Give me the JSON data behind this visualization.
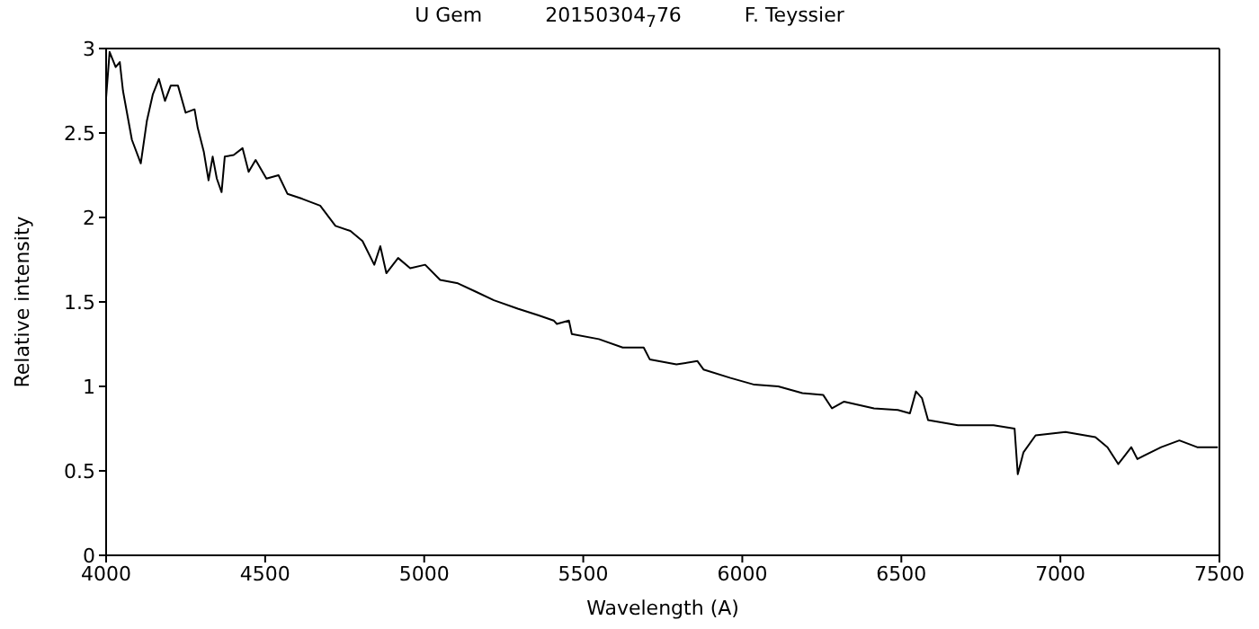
{
  "chart_data": {
    "type": "line",
    "title": "U Gem          20150304$_{7}$76          F. Teyssier",
    "xlabel": "Wavelength (A)",
    "ylabel": "Relative intensity",
    "xlim": [
      4000,
      7500
    ],
    "xticks": [
      4000,
      4500,
      5000,
      5500,
      6000,
      6500,
      7000,
      7500
    ],
    "ylim": [
      0,
      3
    ],
    "yticks": [
      0,
      0.5,
      1,
      1.5,
      2,
      2.5,
      3
    ],
    "grid": false,
    "legend": false,
    "marker": "none",
    "line_style": "solid",
    "series": [
      {
        "color": "#000000",
        "x": [
          4000,
          4011,
          4030,
          4043,
          4053,
          4081,
          4109,
          4128,
          4147,
          4166,
          4185,
          4203,
          4226,
          4250,
          4278,
          4288,
          4307,
          4322,
          4335,
          4348,
          4363,
          4373,
          4401,
          4429,
          4448,
          4470,
          4504,
          4542,
          4570,
          4617,
          4673,
          4721,
          4768,
          4806,
          4843,
          4862,
          4881,
          4918,
          4956,
          5003,
          5050,
          5106,
          5163,
          5219,
          5294,
          5360,
          5407,
          5417,
          5455,
          5464,
          5549,
          5624,
          5690,
          5709,
          5793,
          5859,
          5878,
          5963,
          6038,
          6113,
          6189,
          6254,
          6282,
          6320,
          6414,
          6489,
          6527,
          6546,
          6565,
          6584,
          6678,
          6790,
          6856,
          6866,
          6884,
          6922,
          7016,
          7110,
          7148,
          7182,
          7223,
          7242,
          7317,
          7374,
          7430,
          7495
        ],
        "values": [
          2.71,
          2.98,
          2.89,
          2.92,
          2.75,
          2.46,
          2.32,
          2.57,
          2.73,
          2.82,
          2.69,
          2.78,
          2.78,
          2.62,
          2.64,
          2.53,
          2.39,
          2.22,
          2.36,
          2.23,
          2.15,
          2.36,
          2.37,
          2.41,
          2.27,
          2.34,
          2.23,
          2.25,
          2.14,
          2.11,
          2.07,
          1.95,
          1.92,
          1.86,
          1.72,
          1.83,
          1.67,
          1.76,
          1.7,
          1.72,
          1.63,
          1.61,
          1.56,
          1.51,
          1.46,
          1.42,
          1.39,
          1.37,
          1.39,
          1.31,
          1.28,
          1.23,
          1.23,
          1.16,
          1.13,
          1.15,
          1.1,
          1.05,
          1.01,
          1.0,
          0.96,
          0.95,
          0.87,
          0.91,
          0.87,
          0.86,
          0.84,
          0.97,
          0.93,
          0.8,
          0.77,
          0.77,
          0.75,
          0.48,
          0.61,
          0.71,
          0.73,
          0.7,
          0.64,
          0.54,
          0.64,
          0.57,
          0.64,
          0.68,
          0.64,
          0.64
        ]
      }
    ]
  }
}
